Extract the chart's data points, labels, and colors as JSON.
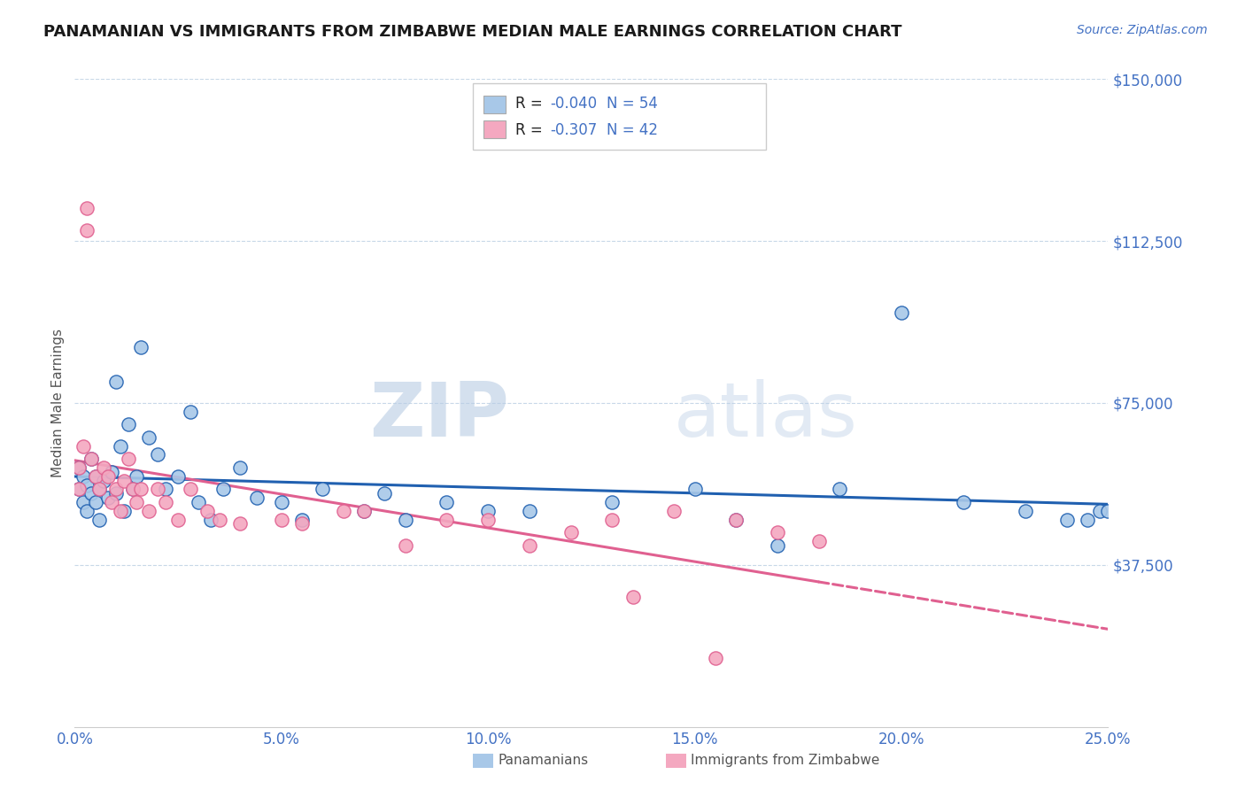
{
  "title": "PANAMANIAN VS IMMIGRANTS FROM ZIMBABWE MEDIAN MALE EARNINGS CORRELATION CHART",
  "source_text": "Source: ZipAtlas.com",
  "ylabel": "Median Male Earnings",
  "xlim": [
    0.0,
    0.25
  ],
  "ylim": [
    0,
    150000
  ],
  "yticks": [
    0,
    37500,
    75000,
    112500,
    150000
  ],
  "ytick_labels": [
    "",
    "$37,500",
    "$75,000",
    "$112,500",
    "$150,000"
  ],
  "xticks": [
    0.0,
    0.05,
    0.1,
    0.15,
    0.2,
    0.25
  ],
  "xtick_labels": [
    "0.0%",
    "5.0%",
    "10.0%",
    "15.0%",
    "20.0%",
    "25.0%"
  ],
  "blue_color": "#a8c8e8",
  "pink_color": "#f4a8c0",
  "trend_blue": "#2060b0",
  "trend_pink": "#e06090",
  "axis_color": "#4472c4",
  "grid_color": "#c8d8e8",
  "watermark": "ZIPatlas",
  "legend_r1": "R = ",
  "legend_r1v": "-0.040",
  "legend_n1": "N = 54",
  "legend_r2": "R = ",
  "legend_r2v": "-0.307",
  "legend_n2": "N = 42",
  "legend_label1": "Panamanians",
  "legend_label2": "Immigrants from Zimbabwe",
  "blue_scatter_x": [
    0.001,
    0.001,
    0.002,
    0.002,
    0.003,
    0.003,
    0.004,
    0.004,
    0.005,
    0.005,
    0.006,
    0.006,
    0.007,
    0.008,
    0.009,
    0.01,
    0.01,
    0.011,
    0.012,
    0.013,
    0.014,
    0.015,
    0.016,
    0.018,
    0.02,
    0.022,
    0.025,
    0.028,
    0.03,
    0.033,
    0.036,
    0.04,
    0.044,
    0.05,
    0.055,
    0.06,
    0.07,
    0.075,
    0.08,
    0.09,
    0.1,
    0.11,
    0.13,
    0.15,
    0.16,
    0.17,
    0.185,
    0.2,
    0.215,
    0.23,
    0.24,
    0.245,
    0.248,
    0.25
  ],
  "blue_scatter_y": [
    60000,
    55000,
    58000,
    52000,
    56000,
    50000,
    54000,
    62000,
    58000,
    52000,
    55000,
    48000,
    57000,
    53000,
    59000,
    80000,
    54000,
    65000,
    50000,
    70000,
    55000,
    58000,
    88000,
    67000,
    63000,
    55000,
    58000,
    73000,
    52000,
    48000,
    55000,
    60000,
    53000,
    52000,
    48000,
    55000,
    50000,
    54000,
    48000,
    52000,
    50000,
    50000,
    52000,
    55000,
    48000,
    42000,
    55000,
    96000,
    52000,
    50000,
    48000,
    48000,
    50000,
    50000
  ],
  "pink_scatter_x": [
    0.001,
    0.001,
    0.002,
    0.003,
    0.003,
    0.004,
    0.005,
    0.006,
    0.007,
    0.008,
    0.009,
    0.01,
    0.011,
    0.012,
    0.013,
    0.014,
    0.015,
    0.016,
    0.018,
    0.02,
    0.022,
    0.025,
    0.028,
    0.032,
    0.035,
    0.04,
    0.05,
    0.055,
    0.065,
    0.07,
    0.08,
    0.09,
    0.1,
    0.11,
    0.12,
    0.13,
    0.135,
    0.145,
    0.155,
    0.16,
    0.17,
    0.18
  ],
  "pink_scatter_y": [
    60000,
    55000,
    65000,
    120000,
    115000,
    62000,
    58000,
    55000,
    60000,
    58000,
    52000,
    55000,
    50000,
    57000,
    62000,
    55000,
    52000,
    55000,
    50000,
    55000,
    52000,
    48000,
    55000,
    50000,
    48000,
    47000,
    48000,
    47000,
    50000,
    50000,
    42000,
    48000,
    48000,
    42000,
    45000,
    48000,
    30000,
    50000,
    16000,
    48000,
    45000,
    43000
  ]
}
